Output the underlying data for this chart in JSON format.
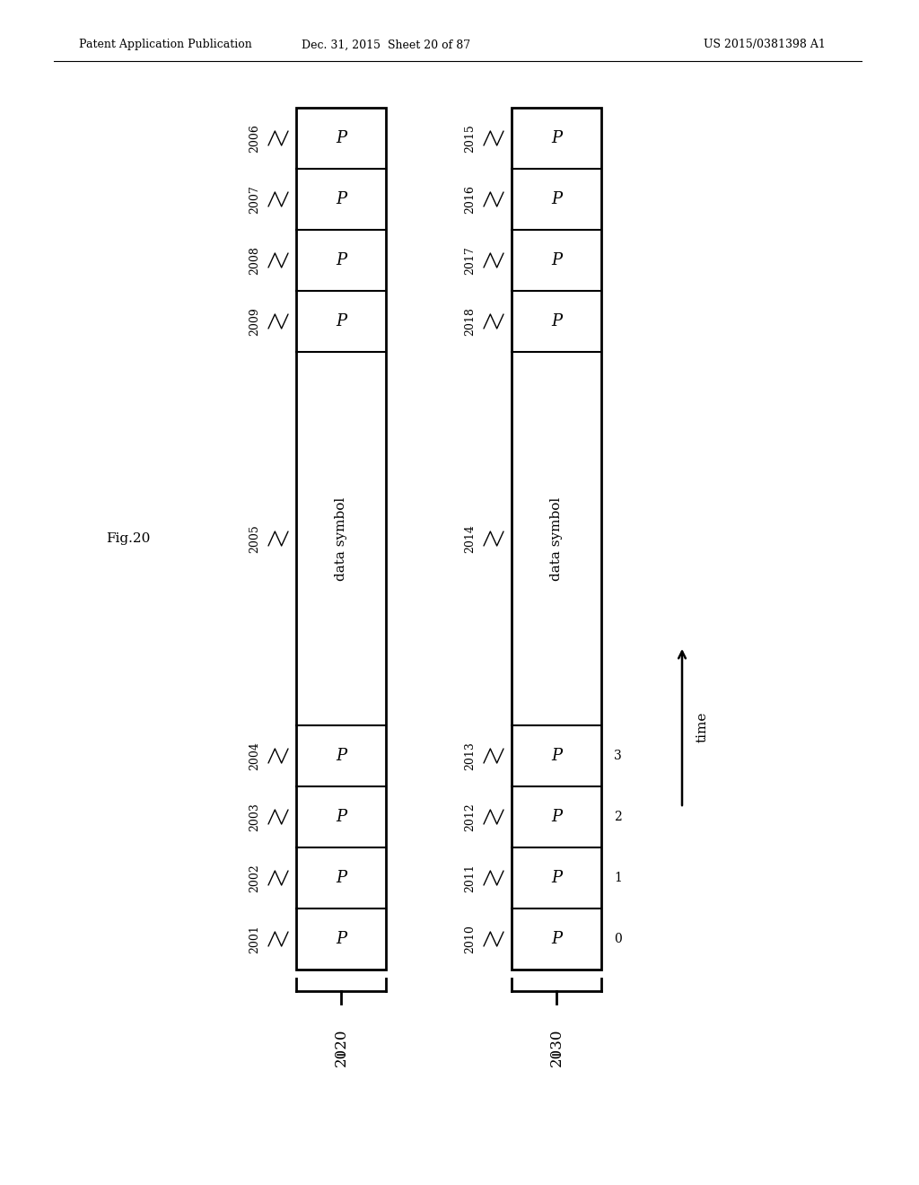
{
  "fig_label": "Fig.20",
  "header_left": "Patent Application Publication",
  "header_mid": "Dec. 31, 2015  Sheet 20 of 87",
  "header_right": "US 2015/0381398 A1",
  "bg_color": "#ffffff",
  "frame2020_label": "2020",
  "frame2030_label": "2030",
  "pilot_label": "P",
  "data_label": "data symbol",
  "frame2020_bottom_labels": [
    "2001",
    "2002",
    "2003",
    "2004"
  ],
  "frame2020_data_label": "2005",
  "frame2020_top_labels": [
    "2006",
    "2007",
    "2008",
    "2009"
  ],
  "frame2030_bottom_labels": [
    "2010",
    "2011",
    "2012",
    "2013"
  ],
  "frame2030_data_label": "2014",
  "frame2030_top_labels": [
    "2015",
    "2016",
    "2017",
    "2018"
  ],
  "frame2030_index_labels": [
    "0",
    "1",
    "2",
    "3"
  ]
}
